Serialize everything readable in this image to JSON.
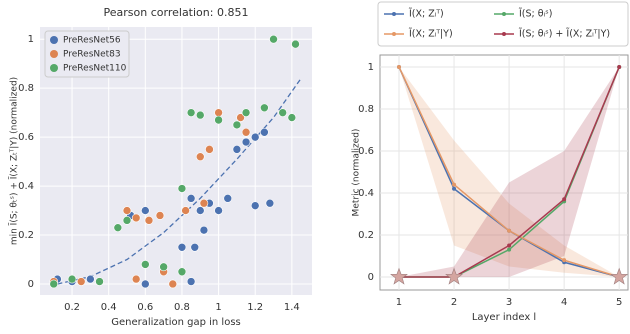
{
  "chart_data": [
    {
      "type": "scatter",
      "title": "Pearson correlation: 0.851",
      "xlabel": "Generalization gap in loss",
      "ylabel": "min Ĩ(S; θₜˢ) + Ĩ(X; Zₜᵀ|Y) (normalized)",
      "xlim": [
        0.025,
        1.51
      ],
      "ylim": [
        -0.045,
        1.05
      ],
      "xticks": [
        0.2,
        0.4,
        0.6,
        0.8,
        1.0,
        1.2,
        1.4
      ],
      "yticks": [
        0.0,
        0.2,
        0.4,
        0.6,
        0.8,
        1.0
      ],
      "grid": true,
      "background": "#eaeaf2",
      "legend": "upper left",
      "series": [
        {
          "name": "PreResNet56",
          "color": "#4c72b0",
          "x": [
            0.12,
            0.2,
            0.3,
            0.6,
            0.75,
            0.85,
            0.52,
            0.6,
            0.85,
            0.9,
            0.95,
            1.0,
            1.05,
            0.92,
            0.87,
            0.8,
            1.1,
            1.15,
            1.2,
            1.25,
            1.28,
            1.2
          ],
          "values": [
            0.02,
            0.01,
            0.02,
            0.0,
            0.0,
            0.01,
            0.28,
            0.3,
            0.35,
            0.3,
            0.33,
            0.3,
            0.35,
            0.22,
            0.15,
            0.15,
            0.55,
            0.58,
            0.6,
            0.62,
            0.33,
            0.32
          ]
        },
        {
          "name": "PreResNet83",
          "color": "#dd8452",
          "x": [
            0.1,
            0.25,
            0.55,
            0.7,
            0.5,
            0.55,
            0.62,
            0.68,
            0.82,
            0.9,
            0.95,
            1.0,
            1.12,
            1.15,
            0.75,
            0.92
          ],
          "values": [
            0.01,
            0.01,
            0.02,
            0.05,
            0.3,
            0.27,
            0.26,
            0.28,
            0.3,
            0.52,
            0.55,
            0.7,
            0.68,
            0.62,
            0.0,
            0.33
          ]
        },
        {
          "name": "PreResNet110",
          "color": "#55a868",
          "x": [
            0.1,
            0.2,
            0.35,
            0.6,
            0.7,
            0.45,
            0.5,
            0.8,
            0.85,
            0.9,
            1.0,
            1.1,
            1.15,
            1.25,
            1.35,
            1.4,
            1.3,
            1.42,
            0.8
          ],
          "values": [
            0.0,
            0.02,
            0.01,
            0.08,
            0.07,
            0.23,
            0.26,
            0.39,
            0.7,
            0.69,
            0.67,
            0.65,
            0.7,
            0.72,
            0.7,
            0.68,
            1.0,
            0.98,
            0.05
          ]
        }
      ],
      "trend_line": {
        "color": "#4c72b0",
        "x": [
          0.12,
          0.3,
          0.5,
          0.7,
          0.9,
          1.1,
          1.3,
          1.45
        ],
        "values": [
          0.0,
          0.03,
          0.1,
          0.21,
          0.35,
          0.51,
          0.68,
          0.84
        ]
      }
    },
    {
      "type": "line",
      "xlabel": "Layer index l",
      "ylabel": "Metric (normalized)",
      "xlim": [
        0.655,
        5.16
      ],
      "ylim": [
        -0.062,
        1.057
      ],
      "xticks": [
        1,
        2,
        3,
        4,
        5
      ],
      "yticks": [
        0.0,
        0.2,
        0.4,
        0.6,
        0.8,
        1.0
      ],
      "grid": true,
      "background": "#ffffff",
      "legend": "top outside",
      "x": [
        1,
        2,
        3,
        4,
        5
      ],
      "series": [
        {
          "name": "Ĩ(X; Zₗᵀ)",
          "color": "#4c72b0",
          "values": [
            1.0,
            0.42,
            0.22,
            0.07,
            0.0
          ]
        },
        {
          "name": "Ĩ(S; θₗˢ)",
          "color": "#55a868",
          "values": [
            0.0,
            0.0,
            0.13,
            0.36,
            1.0
          ]
        },
        {
          "name": "Ĩ(X; Zₗᵀ|Y)",
          "color": "#e59866",
          "values": [
            1.0,
            0.44,
            0.22,
            0.08,
            0.0
          ],
          "band_low": [
            1.0,
            0.15,
            0.05,
            0.02,
            0.0
          ],
          "band_high": [
            1.0,
            0.65,
            0.35,
            0.15,
            0.0
          ]
        },
        {
          "name": "Ĩ(S; θₗˢ) + Ĩ(X; Zₗᵀ|Y)",
          "color": "#a83a4f",
          "values": [
            0.0,
            0.0,
            0.15,
            0.37,
            1.0
          ],
          "band_low": [
            0.0,
            0.0,
            0.0,
            0.1,
            1.0
          ],
          "band_high": [
            0.0,
            0.05,
            0.45,
            0.6,
            1.0
          ]
        }
      ],
      "markers": {
        "color": "#d4a5a0",
        "x": [
          1,
          2,
          5
        ],
        "values": [
          0.0,
          0.0,
          0.0
        ]
      }
    }
  ]
}
